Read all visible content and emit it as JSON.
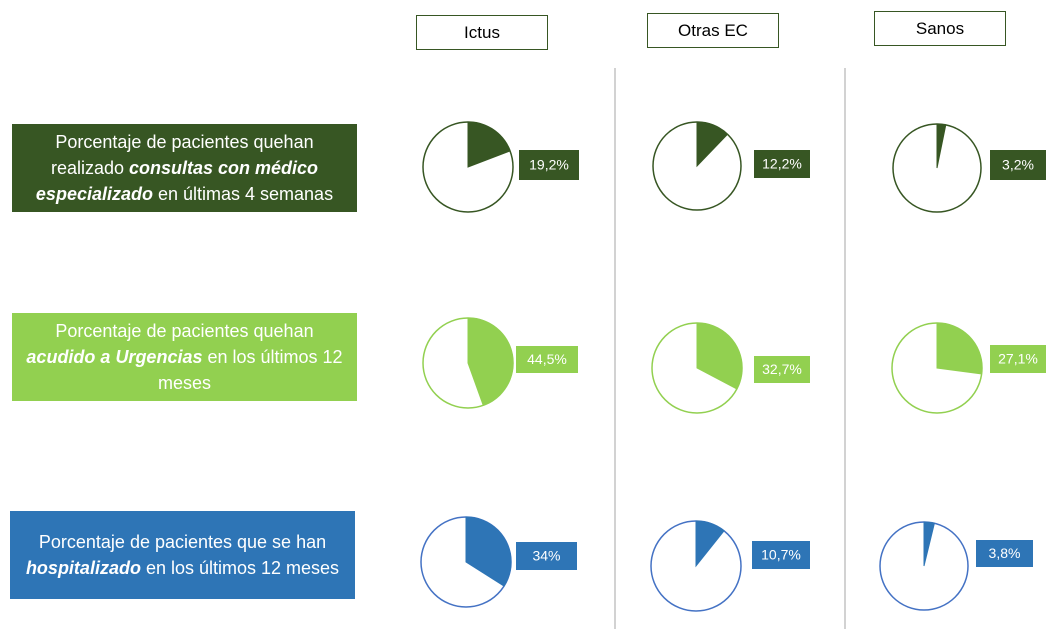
{
  "columns": [
    "Ictus",
    "Otras EC",
    "Sanos"
  ],
  "rows": [
    {
      "parts": [
        "Porcentaje de pacientes quehan realizado ",
        "consultas con médico especializado",
        " en últimas 4 semanas"
      ],
      "color": "#375623"
    },
    {
      "parts": [
        "Porcentaje de pacientes quehan ",
        "acudido a Urgencias",
        " en los últimos 12 meses"
      ],
      "color": "#92d050"
    },
    {
      "parts": [
        "Porcentaje de pacientes que se han ",
        "hospitalizado",
        " en los últimos 12 meses"
      ],
      "color": "#2e75b6"
    }
  ],
  "chart_data": [
    {
      "type": "pie",
      "values": [
        19.2
      ],
      "value_labels": [
        "19,2%"
      ],
      "color": "#375623"
    },
    {
      "type": "pie",
      "values": [
        12.2
      ],
      "value_labels": [
        "12,2%"
      ],
      "color": "#375623"
    },
    {
      "type": "pie",
      "values": [
        3.2
      ],
      "value_labels": [
        "3,2%"
      ],
      "color": "#375623"
    },
    {
      "type": "pie",
      "values": [
        44.5
      ],
      "value_labels": [
        "44,5%"
      ],
      "color": "#92d050"
    },
    {
      "type": "pie",
      "values": [
        32.7
      ],
      "value_labels": [
        "32,7%"
      ],
      "color": "#92d050"
    },
    {
      "type": "pie",
      "values": [
        27.1
      ],
      "value_labels": [
        "27,1%"
      ],
      "color": "#92d050"
    },
    {
      "type": "pie",
      "values": [
        34
      ],
      "value_labels": [
        "34%"
      ],
      "color": "#2e75b6"
    },
    {
      "type": "pie",
      "values": [
        10.7
      ],
      "value_labels": [
        "10,7%"
      ],
      "color": "#2e75b6"
    },
    {
      "type": "pie",
      "values": [
        3.8
      ],
      "value_labels": [
        "3,8%"
      ],
      "color": "#2e75b6"
    }
  ]
}
